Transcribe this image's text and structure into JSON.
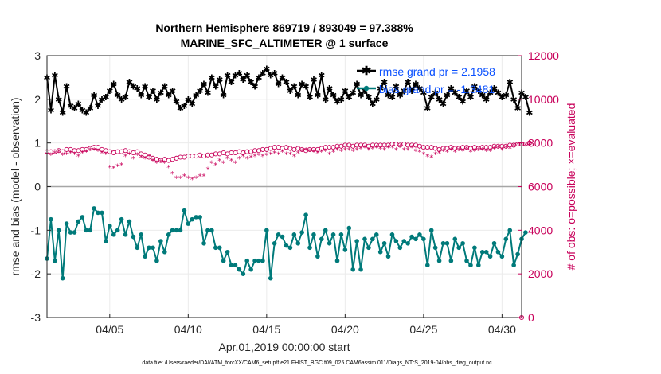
{
  "chart_data": {
    "type": "line",
    "title": "Northern Hemisphere 869719 / 893049 = 97.388%",
    "subtitle": "MARINE_SFC_ALTIMETER @ 1 surface",
    "xlabel": "Apr.01,2019 00:00:00 start",
    "ylabel_left": "rmse and bias (model - observation)",
    "ylabel_right": "# of obs: o=possible; ×=evaluated",
    "xlim": [
      1.0,
      31.25
    ],
    "ylim_left": [
      -3,
      3
    ],
    "ylim_right": [
      0,
      12000
    ],
    "x_ticks": [
      {
        "value": 5,
        "label": "04/05"
      },
      {
        "value": 10,
        "label": "04/10"
      },
      {
        "value": 15,
        "label": "04/15"
      },
      {
        "value": 20,
        "label": "04/20"
      },
      {
        "value": 25,
        "label": "04/25"
      },
      {
        "value": 30,
        "label": "04/30"
      }
    ],
    "y_ticks_left": [
      "-3",
      "-2",
      "-1",
      "0",
      "1",
      "2",
      "3"
    ],
    "y_ticks_right": [
      "0",
      "2000",
      "4000",
      "6000",
      "8000",
      "10000",
      "12000"
    ],
    "grid": true,
    "legend_position": "top-right",
    "colors": {
      "rmse": "#000000",
      "bias": "#007a7a",
      "obs": "#c8005a",
      "legend_text": "#0a50ff",
      "zero_line": "#a6a6a6"
    },
    "x_start": 1.0,
    "x_step": 0.25,
    "series": [
      {
        "name": "rmse grand pr = 2.1958",
        "axis": "left",
        "values": [
          2.5,
          1.75,
          2.55,
          2.0,
          1.7,
          2.3,
          1.85,
          1.8,
          1.9,
          1.75,
          1.7,
          1.8,
          2.1,
          1.85,
          2.0,
          2.05,
          2.2,
          2.35,
          2.1,
          2.0,
          2.05,
          2.4,
          2.3,
          2.25,
          2.1,
          2.3,
          2.05,
          2.2,
          2.0,
          2.15,
          2.3,
          2.1,
          2.2,
          1.95,
          1.8,
          1.85,
          2.0,
          1.9,
          2.1,
          2.2,
          2.35,
          2.15,
          2.5,
          2.3,
          2.45,
          2.1,
          2.55,
          2.4,
          2.55,
          2.6,
          2.45,
          2.55,
          2.4,
          2.3,
          2.5,
          2.6,
          2.7,
          2.55,
          2.6,
          2.35,
          2.5,
          2.4,
          2.2,
          2.3,
          2.1,
          2.35,
          2.3,
          2.05,
          2.45,
          2.1,
          2.55,
          2.0,
          2.25,
          2.1,
          1.95,
          2.0,
          2.2,
          2.05,
          2.15,
          2.35,
          2.1,
          2.2,
          2.05,
          1.9,
          2.0,
          2.25,
          2.4,
          2.1,
          2.05,
          2.3,
          2.1,
          2.2,
          2.4,
          2.2,
          2.35,
          2.25,
          2.15,
          1.8,
          2.05,
          2.15,
          2.0,
          1.9,
          2.1,
          2.25,
          2.15,
          2.05,
          1.95,
          2.2,
          2.05,
          2.3,
          2.2,
          2.1,
          2.0,
          2.15,
          2.25,
          2.15,
          2.05,
          2.1,
          2.4,
          2.0,
          1.8,
          2.15,
          2.05,
          1.7
        ]
      },
      {
        "name": "bias grand pr = -1.3481",
        "axis": "left",
        "values": [
          -1.65,
          -0.75,
          -1.7,
          -1.0,
          -2.1,
          -0.85,
          -1.05,
          -1.05,
          -0.8,
          -0.7,
          -1.0,
          -1.0,
          -0.5,
          -0.6,
          -0.6,
          -1.25,
          -0.9,
          -1.1,
          -1.0,
          -0.75,
          -1.1,
          -0.8,
          -1.15,
          -1.4,
          -1.1,
          -1.6,
          -1.4,
          -1.4,
          -1.7,
          -1.25,
          -1.5,
          -1.1,
          -1.0,
          -1.0,
          -1.0,
          -0.55,
          -0.85,
          -0.75,
          -0.7,
          -0.7,
          -1.3,
          -1.0,
          -1.0,
          -1.4,
          -1.4,
          -1.7,
          -1.5,
          -1.8,
          -1.8,
          -1.9,
          -2.0,
          -1.7,
          -1.9,
          -1.7,
          -1.7,
          -1.7,
          -1.0,
          -2.1,
          -1.3,
          -1.1,
          -1.15,
          -1.35,
          -1.4,
          -1.1,
          -1.3,
          -1.05,
          -0.65,
          -1.4,
          -1.1,
          -1.6,
          -1.2,
          -1.0,
          -1.3,
          -1.1,
          -1.7,
          -1.1,
          -1.45,
          -0.95,
          -1.9,
          -1.25,
          -1.9,
          -1.2,
          -1.4,
          -1.2,
          -1.1,
          -1.5,
          -1.3,
          -1.6,
          -1.1,
          -1.25,
          -1.4,
          -1.25,
          -1.3,
          -1.15,
          -1.2,
          -1.1,
          -1.2,
          -1.8,
          -1.0,
          -1.4,
          -1.7,
          -1.3,
          -1.3,
          -1.7,
          -1.2,
          -1.4,
          -1.3,
          -1.7,
          -1.8,
          -1.4,
          -1.8,
          -1.5,
          -1.5,
          -1.6,
          -1.3,
          -1.5,
          -1.6,
          -1.2,
          -1.0,
          -1.8,
          -1.55,
          -1.2,
          -1.05
        ]
      },
      {
        "name": "possible",
        "axis": "right",
        "marker": "o",
        "values": [
          7600,
          7600,
          7600,
          7650,
          7600,
          7700,
          7700,
          7650,
          7650,
          7700,
          7700,
          7750,
          7800,
          7800,
          7700,
          7650,
          7600,
          7550,
          7600,
          7600,
          7650,
          7600,
          7550,
          7600,
          7500,
          7450,
          7350,
          7300,
          7250,
          7200,
          7250,
          7200,
          7250,
          7300,
          7350,
          7350,
          7400,
          7400,
          7400,
          7450,
          7400,
          7450,
          7450,
          7500,
          7500,
          7550,
          7500,
          7550,
          7550,
          7600,
          7550,
          7600,
          7600,
          7650,
          7650,
          7700,
          7700,
          7750,
          7800,
          7800,
          7750,
          7800,
          7750,
          7700,
          7750,
          7700,
          7650,
          7700,
          7700,
          7700,
          7750,
          7800,
          7800,
          7800,
          7850,
          7850,
          7900,
          7900,
          7850,
          7900,
          7900,
          7900,
          7850,
          7900,
          7900,
          7900,
          7900,
          7900,
          7950,
          7950,
          7900,
          7950,
          7900,
          7900,
          7900,
          7850,
          7800,
          7800,
          7800,
          7750,
          7700,
          7750,
          7750,
          7800,
          7750,
          7750,
          7800,
          7800,
          7750,
          7800,
          7750,
          7800,
          7800,
          7800,
          7850,
          7850,
          7850,
          7850,
          7900,
          7900,
          7950,
          7950,
          7950,
          8000
        ]
      },
      {
        "name": "evaluated",
        "axis": "right",
        "marker": "*",
        "values": [
          7500,
          7450,
          7550,
          7600,
          7450,
          7500,
          7550,
          7500,
          7400,
          7550,
          7600,
          7700,
          7700,
          7650,
          7550,
          7500,
          6900,
          6850,
          6950,
          7000,
          7400,
          7500,
          7300,
          7450,
          7350,
          7300,
          7400,
          7200,
          7100,
          7150,
          7100,
          6900,
          6600,
          6400,
          6400,
          6500,
          6400,
          6350,
          6400,
          6500,
          6500,
          6800,
          7100,
          7000,
          7200,
          7100,
          7300,
          7200,
          7100,
          7300,
          7400,
          7300,
          7350,
          7400,
          7450,
          7400,
          7450,
          7500,
          7550,
          7500,
          7600,
          7500,
          7500,
          7400,
          7550,
          7650,
          7700,
          7650,
          7600,
          7550,
          7600,
          7650,
          7500,
          7600,
          7700,
          7650,
          7700,
          7700,
          7650,
          7700,
          7750,
          7800,
          7700,
          7750,
          7800,
          7750,
          7700,
          7800,
          7800,
          7700,
          7850,
          7700,
          7700,
          7800,
          7650,
          7600,
          7500,
          7400,
          7350,
          7500,
          7550,
          7650,
          7600,
          7700,
          7600,
          7700,
          7650,
          7750,
          7600,
          7650,
          7700,
          7700,
          7650,
          7650,
          7750,
          7800,
          7700,
          7800,
          7750,
          7900,
          7950,
          7950,
          7900,
          7950
        ]
      }
    ],
    "extra_marks": [
      {
        "series": "possible",
        "x": 31.25,
        "value": 0
      },
      {
        "series": "evaluated",
        "x": 31.25,
        "value": 0
      }
    ]
  },
  "footnote": "data file: /Users/raeder/DAI/ATM_forcXX/CAM6_setup/f.e21.FHIST_BGC.f09_025.CAM6assim.011/Diags_NTrS_2019-04/obs_diag_output.nc"
}
